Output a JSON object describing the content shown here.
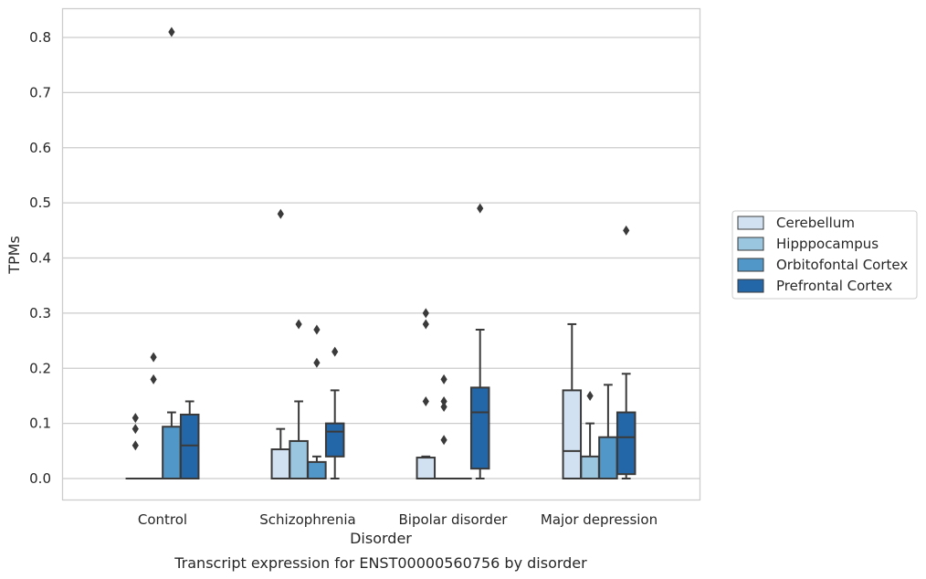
{
  "chart_data": {
    "type": "box",
    "xlabel": "Disorder",
    "ylabel": "TPMs",
    "caption": "Transcript expression for ENST00000560756 by disorder",
    "ylim": [
      -0.04,
      0.85
    ],
    "yticks": [
      "0.0",
      "0.1",
      "0.2",
      "0.3",
      "0.4",
      "0.5",
      "0.6",
      "0.7",
      "0.8"
    ],
    "grid": "horizontal",
    "legend_position": "right",
    "categories": [
      "Control",
      "Schizophrenia",
      "Bipolar disorder",
      "Major depression"
    ],
    "series": [
      {
        "name": "Cerebellum",
        "color": "#d1e1f1",
        "boxes": [
          {
            "q1": 0.0,
            "median": 0.0,
            "q3": 0.0,
            "whislo": 0.0,
            "whishi": 0.0,
            "fliers": [
              0.06,
              0.09,
              0.11
            ]
          },
          {
            "q1": 0.0,
            "median": 0.0,
            "q3": 0.053,
            "whislo": 0.0,
            "whishi": 0.09,
            "fliers": [
              0.48
            ]
          },
          {
            "q1": 0.0,
            "median": 0.0,
            "q3": 0.038,
            "whislo": 0.0,
            "whishi": 0.04,
            "fliers": [
              0.14,
              0.28,
              0.3
            ]
          },
          {
            "q1": 0.0,
            "median": 0.05,
            "q3": 0.16,
            "whislo": 0.0,
            "whishi": 0.28,
            "fliers": []
          }
        ]
      },
      {
        "name": "Hipppocampus",
        "color": "#9ac6e0",
        "boxes": [
          {
            "q1": 0.0,
            "median": 0.0,
            "q3": 0.0,
            "whislo": 0.0,
            "whishi": 0.0,
            "fliers": [
              0.18,
              0.22
            ]
          },
          {
            "q1": 0.0,
            "median": 0.0,
            "q3": 0.068,
            "whislo": 0.0,
            "whishi": 0.14,
            "fliers": [
              0.28
            ]
          },
          {
            "q1": 0.0,
            "median": 0.0,
            "q3": 0.0,
            "whislo": 0.0,
            "whishi": 0.0,
            "fliers": [
              0.07,
              0.13,
              0.14,
              0.18
            ]
          },
          {
            "q1": 0.0,
            "median": 0.0,
            "q3": 0.04,
            "whislo": 0.0,
            "whishi": 0.1,
            "fliers": [
              0.15
            ]
          }
        ]
      },
      {
        "name": "Orbitofontal Cortex",
        "color": "#5197c8",
        "boxes": [
          {
            "q1": 0.0,
            "median": 0.0,
            "q3": 0.094,
            "whislo": 0.0,
            "whishi": 0.12,
            "fliers": [
              0.81
            ]
          },
          {
            "q1": 0.0,
            "median": 0.0,
            "q3": 0.03,
            "whislo": 0.0,
            "whishi": 0.04,
            "fliers": [
              0.21,
              0.27
            ]
          },
          {
            "q1": 0.0,
            "median": 0.0,
            "q3": 0.0,
            "whislo": 0.0,
            "whishi": 0.0,
            "fliers": []
          },
          {
            "q1": 0.0,
            "median": 0.0,
            "q3": 0.075,
            "whislo": 0.0,
            "whishi": 0.17,
            "fliers": []
          }
        ]
      },
      {
        "name": "Prefrontal Cortex",
        "color": "#2467a8",
        "boxes": [
          {
            "q1": 0.0,
            "median": 0.06,
            "q3": 0.116,
            "whislo": 0.0,
            "whishi": 0.14,
            "fliers": []
          },
          {
            "q1": 0.04,
            "median": 0.085,
            "q3": 0.1,
            "whislo": 0.0,
            "whishi": 0.16,
            "fliers": [
              0.23
            ]
          },
          {
            "q1": 0.018,
            "median": 0.12,
            "q3": 0.165,
            "whislo": 0.0,
            "whishi": 0.27,
            "fliers": [
              0.49
            ]
          },
          {
            "q1": 0.008,
            "median": 0.075,
            "q3": 0.12,
            "whislo": 0.0,
            "whishi": 0.19,
            "fliers": [
              0.45
            ]
          }
        ]
      }
    ]
  }
}
